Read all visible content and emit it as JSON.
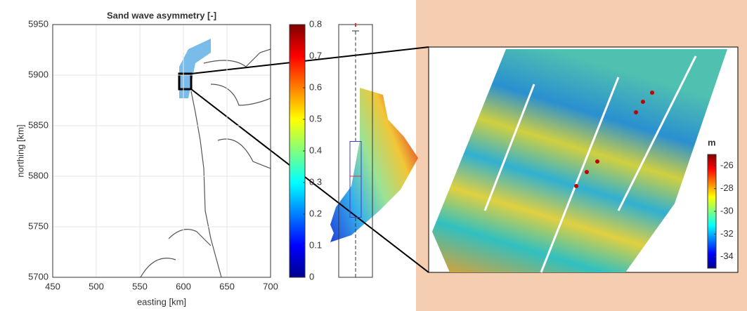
{
  "chart_data": [
    {
      "type": "scatter",
      "title": "Sand wave asymmetry [-]",
      "x_label": "easting [km]",
      "y_label": "northing [km]",
      "xlim": [
        450,
        700
      ],
      "ylim": [
        5700,
        5950
      ],
      "xticks": [
        450,
        500,
        550,
        600,
        650,
        700
      ],
      "yticks": [
        5700,
        5750,
        5800,
        5850,
        5900,
        5950
      ],
      "grid": true
    },
    {
      "type": "colorbar",
      "ylim": [
        0,
        0.8
      ],
      "yticks": [
        0,
        0.1,
        0.2,
        0.3,
        0.4,
        0.5,
        0.6,
        0.7,
        0.8
      ]
    },
    {
      "type": "box",
      "ylim": [
        0,
        0.8
      ],
      "min": 0,
      "q1": 0.19,
      "median": 0.32,
      "q3": 0.43,
      "max": 0.78,
      "outliers": [
        0.8
      ],
      "box_color": "#3b3bd6",
      "median_color": "#e03030"
    },
    {
      "type": "colorbar",
      "label": "m",
      "ylim": [
        -35,
        -25
      ],
      "yticks": [
        -34,
        -32,
        -30,
        -28,
        -26
      ]
    }
  ]
}
